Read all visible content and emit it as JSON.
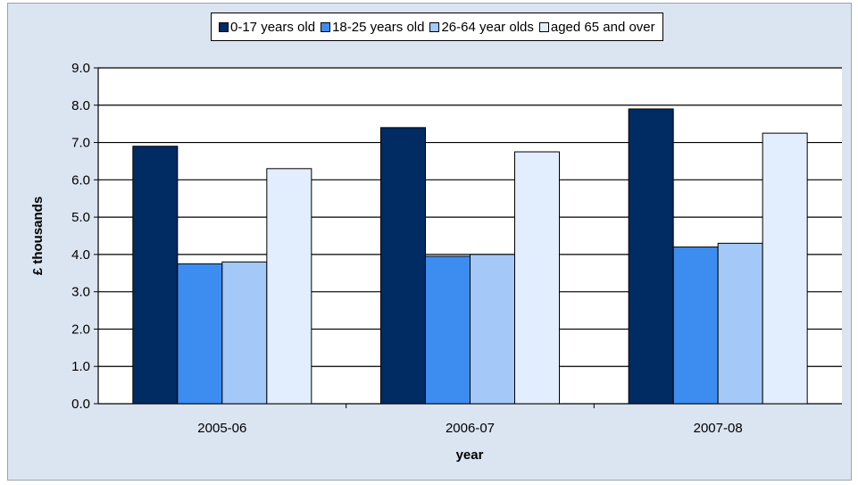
{
  "chart_data": {
    "type": "bar",
    "title": "",
    "xlabel": "year",
    "ylabel": "£ thousands",
    "categories": [
      "2005-06",
      "2006-07",
      "2007-08"
    ],
    "series": [
      {
        "name": "0-17 years old",
        "values": [
          6.9,
          7.4,
          7.9
        ],
        "color": "#002b63"
      },
      {
        "name": "18-25 years old",
        "values": [
          3.75,
          3.95,
          4.2
        ],
        "color": "#3d8df0"
      },
      {
        "name": "26-64 year olds",
        "values": [
          3.8,
          4.0,
          4.3
        ],
        "color": "#a4c8f8"
      },
      {
        "name": "aged 65 and over",
        "values": [
          6.3,
          6.75,
          7.25
        ],
        "color": "#e2edfd"
      }
    ],
    "ylim": [
      0,
      9
    ],
    "yticks": [
      "0.0",
      "1.0",
      "2.0",
      "3.0",
      "4.0",
      "5.0",
      "6.0",
      "7.0",
      "8.0",
      "9.0"
    ],
    "grid": true,
    "legend_position": "top"
  }
}
